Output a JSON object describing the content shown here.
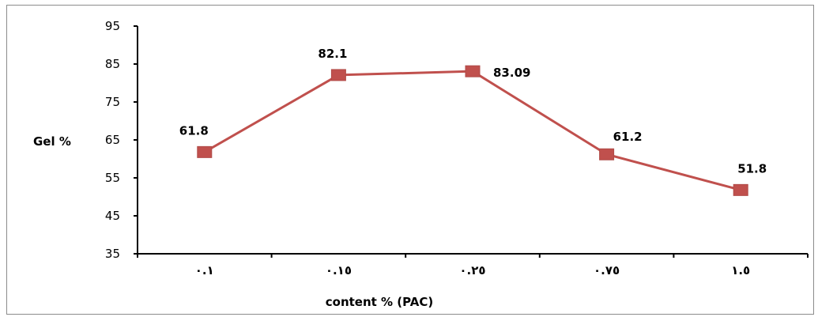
{
  "chart_data": {
    "type": "line",
    "categories": [
      "٠.١",
      "٠.١٥",
      "٠.٢٥",
      "٠.٧٥",
      "١.٥"
    ],
    "values": [
      61.8,
      82.1,
      83.09,
      61.2,
      51.8
    ],
    "data_labels": [
      "61.8",
      "82.1",
      "83.09",
      "61.2",
      "51.8"
    ],
    "title": "",
    "xlabel": "content % (PAC)",
    "ylabel": "Gel %",
    "ylim": [
      35,
      95
    ],
    "yticks": [
      "35",
      "45",
      "55",
      "65",
      "75",
      "85",
      "95"
    ],
    "grid": false,
    "legend": "none",
    "line_color": "#c0504d",
    "marker_color": "#c0504d"
  }
}
